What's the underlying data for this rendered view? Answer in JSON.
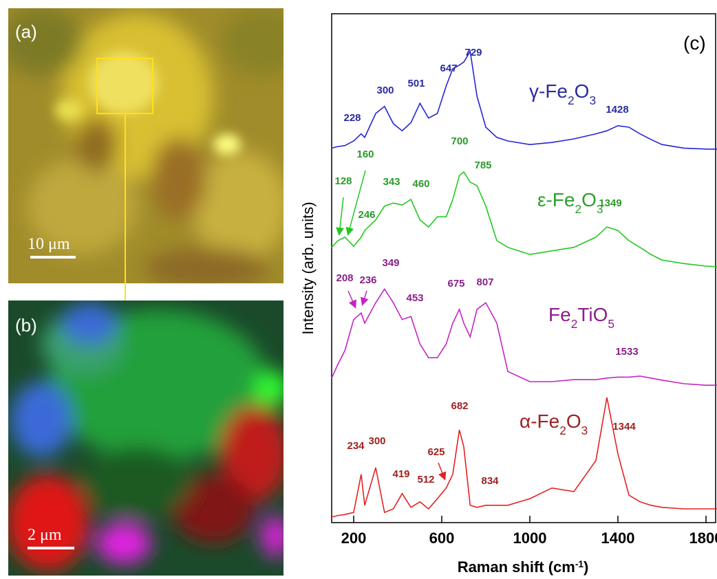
{
  "panels": {
    "a": {
      "label": "(a)",
      "scale_bar": "10 μm"
    },
    "b": {
      "label": "(b)",
      "scale_bar": "2 μm"
    }
  },
  "chart_data": {
    "type": "line",
    "panel_label": "(c)",
    "x_label": "Raman shift (cm-1)",
    "y_label": "Intensity (arb. units)",
    "xlim": [
      100,
      1850
    ],
    "xticks": [
      200,
      600,
      1000,
      1400,
      1800
    ],
    "ylim": [
      0,
      100
    ],
    "x": [
      100,
      128,
      160,
      200,
      234,
      250,
      300,
      340,
      380,
      420,
      460,
      501,
      540,
      580,
      620,
      650,
      680,
      700,
      729,
      760,
      800,
      850,
      900,
      1000,
      1100,
      1200,
      1300,
      1350,
      1400,
      1450,
      1500,
      1550,
      1600,
      1700,
      1800,
      1850
    ],
    "series": [
      {
        "name": "γ-Fe2O3",
        "color": "#2424d8",
        "label_color": "#2a2aa0",
        "values": [
          73.6,
          73.9,
          74.1,
          75.0,
          76.4,
          75.7,
          80.4,
          81.8,
          78.4,
          77.0,
          78.6,
          82.4,
          79.5,
          80.4,
          85.8,
          89.2,
          89.9,
          90.5,
          92.6,
          83.8,
          77.7,
          75.7,
          75.0,
          74.3,
          74.7,
          75.4,
          76.4,
          77.0,
          78.0,
          77.7,
          76.4,
          75.3,
          74.3,
          73.6,
          73.4,
          73.4
        ],
        "peak_labels": [
          "228",
          "300",
          "501",
          "647",
          "729",
          "1428"
        ]
      },
      {
        "name": "ε-Fe2O3",
        "color": "#22c822",
        "label_color": "#2a9a2a",
        "values": [
          54.1,
          55.4,
          56.1,
          54.3,
          56.1,
          57.4,
          59.5,
          62.2,
          62.8,
          62.4,
          63.5,
          59.5,
          58.1,
          60.1,
          60.1,
          63.5,
          68.2,
          68.9,
          66.9,
          66.2,
          62.2,
          55.4,
          54.1,
          52.7,
          53.4,
          54.1,
          56.1,
          58.1,
          57.4,
          55.4,
          54.1,
          52.7,
          51.6,
          50.9,
          50.4,
          50.3
        ],
        "peak_labels": [
          "160",
          "700",
          "128",
          "343",
          "460",
          "785",
          "246",
          "1349"
        ]
      },
      {
        "name": "Fe2TiO5",
        "color": "#c424c4",
        "label_color": "#8a1f8a",
        "values": [
          28.4,
          31.1,
          33.8,
          39.9,
          41.2,
          39.2,
          43.2,
          45.9,
          43.2,
          39.9,
          40.5,
          35.1,
          32.4,
          32.4,
          35.1,
          39.2,
          41.9,
          39.2,
          36.5,
          41.9,
          43.2,
          39.2,
          29.7,
          27.7,
          27.7,
          28.1,
          28.1,
          28.4,
          28.6,
          28.6,
          28.8,
          28.4,
          28.0,
          27.3,
          27.0,
          27.0
        ],
        "peak_labels": [
          "349",
          "208",
          "236",
          "453",
          "675",
          "807",
          "1533"
        ]
      },
      {
        "name": "α-Fe2O3",
        "color": "#e42020",
        "label_color": "#a02020",
        "values": [
          1.1,
          1.4,
          1.6,
          2.0,
          9.5,
          3.4,
          10.8,
          2.0,
          2.7,
          5.7,
          3.0,
          4.1,
          2.7,
          4.7,
          6.8,
          9.5,
          18.2,
          14.9,
          3.4,
          3.0,
          3.4,
          3.4,
          3.4,
          4.7,
          6.8,
          6.1,
          12.2,
          24.6,
          13.5,
          5.4,
          4.1,
          3.4,
          3.0,
          2.7,
          2.7,
          2.7
        ],
        "peak_labels": [
          "682",
          "1344",
          "625",
          "234",
          "300",
          "419",
          "512",
          "834"
        ]
      }
    ]
  }
}
